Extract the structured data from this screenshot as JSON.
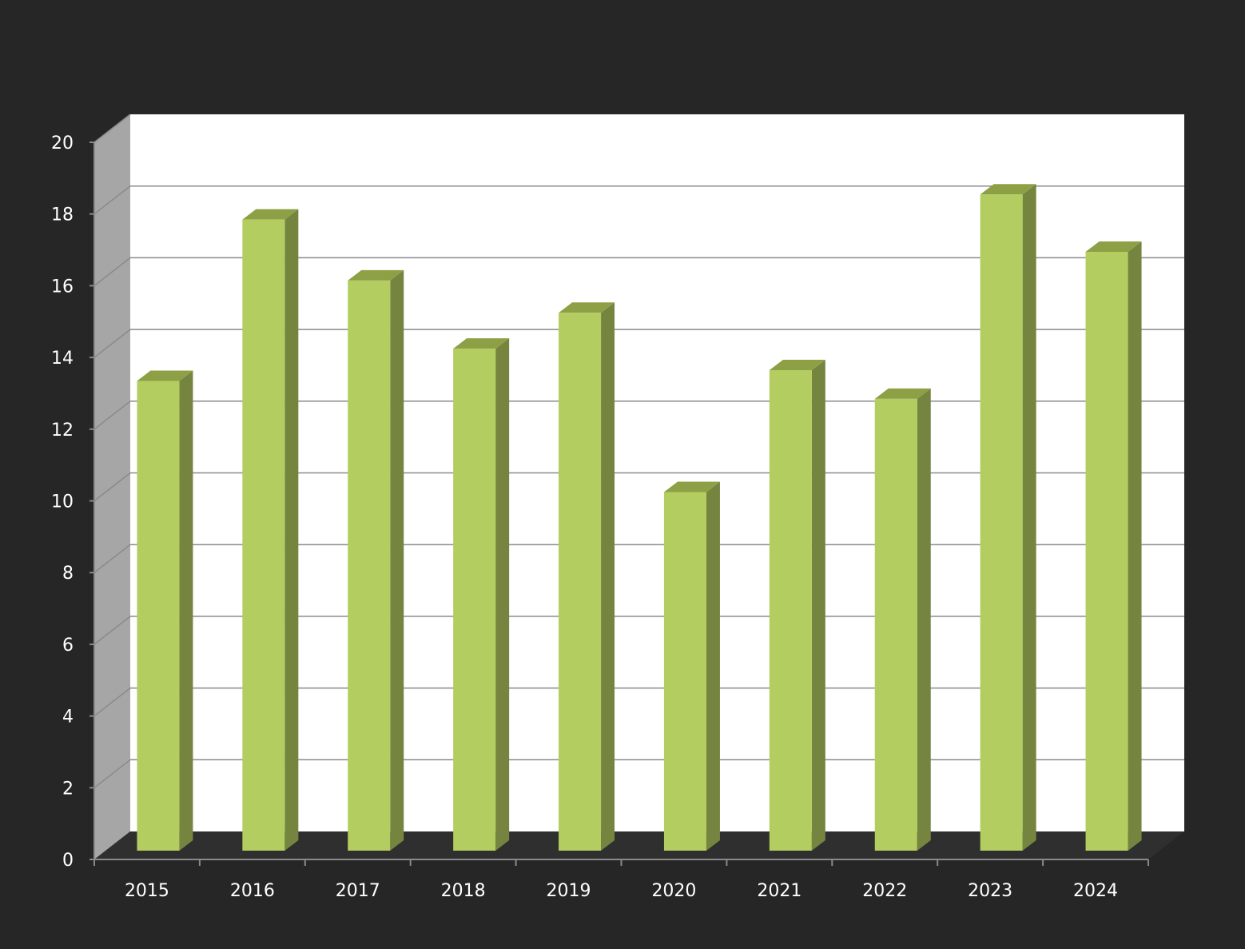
{
  "chart_data": {
    "type": "bar",
    "title": "",
    "xlabel": "",
    "ylabel": "",
    "categories": [
      "2015",
      "2016",
      "2017",
      "2018",
      "2019",
      "2020",
      "2021",
      "2022",
      "2023",
      "2024"
    ],
    "series": [
      {
        "values": [
          13.1,
          17.6,
          15.9,
          14.0,
          15.0,
          10.0,
          13.4,
          12.6,
          18.3,
          16.7
        ]
      }
    ],
    "ylim": [
      0,
      20
    ],
    "yticks": [
      "0",
      "2",
      "4",
      "6",
      "8",
      "10",
      "12",
      "14",
      "16",
      "18",
      "20"
    ],
    "grid": true,
    "legend": "none",
    "style": "3d-column",
    "colors": {
      "background": "#262626",
      "plot_back_wall": "#ffffff",
      "side_wall": "#a6a6a6",
      "floor": "#2f2f2f",
      "gridline": "#8a8a8a",
      "bar_front": "#b3cd60",
      "bar_side": "#758540",
      "bar_top": "#8ea045",
      "tick_label": "#ffffff"
    }
  }
}
